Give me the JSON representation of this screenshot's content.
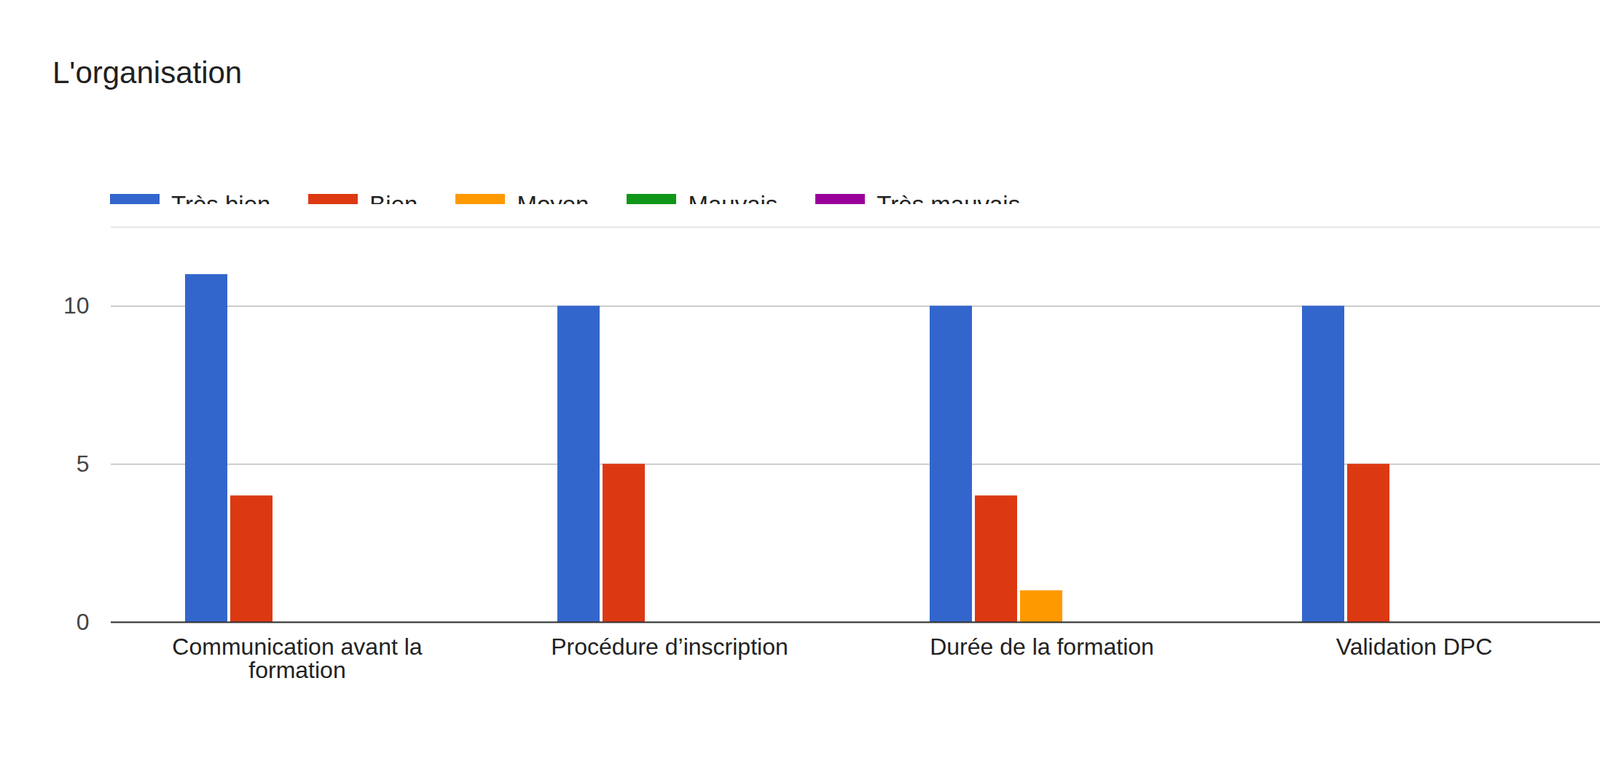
{
  "chart_data": {
    "type": "bar",
    "title": "L'organisation",
    "categories": [
      "Communication avant la formation",
      "Procédure d’inscription",
      "Durée de la formation",
      "Validation DPC"
    ],
    "series": [
      {
        "name": "Très bien",
        "color": "#3366cc",
        "values": [
          11,
          10,
          10,
          10
        ]
      },
      {
        "name": "Bien",
        "color": "#dc3912",
        "values": [
          4,
          5,
          4,
          5
        ]
      },
      {
        "name": "Moyen",
        "color": "#ff9900",
        "values": [
          0,
          0,
          1,
          0
        ]
      },
      {
        "name": "Mauvais",
        "color": "#109618",
        "values": [
          0,
          0,
          0,
          0
        ]
      },
      {
        "name": "Très mauvais",
        "color": "#990099",
        "values": [
          0,
          0,
          0,
          0
        ]
      }
    ],
    "ylim": [
      0,
      12.5
    ],
    "yticks": [
      0,
      5,
      10
    ],
    "grid": true,
    "legend": "top"
  }
}
